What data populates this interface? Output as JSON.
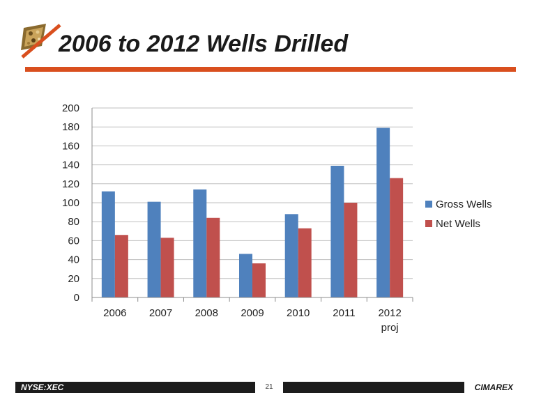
{
  "slide": {
    "title": "2006 to 2012 Wells Drilled",
    "footer": {
      "ticker": "NYSE:XEC",
      "page": "21",
      "logo_text": "CIMAREX"
    }
  },
  "colors": {
    "accent": "#d94f1e",
    "gross": "#4f81bd",
    "net": "#c0504d",
    "grid": "#bfbfbf"
  },
  "chart_data": {
    "type": "bar",
    "categories": [
      [
        "2006"
      ],
      [
        "2007"
      ],
      [
        "2008"
      ],
      [
        "2009"
      ],
      [
        "2010"
      ],
      [
        "2011"
      ],
      [
        "2012",
        "proj"
      ]
    ],
    "series": [
      {
        "name": "Gross Wells",
        "values": [
          112,
          101,
          114,
          46,
          88,
          139,
          179
        ]
      },
      {
        "name": "Net Wells",
        "values": [
          66,
          63,
          84,
          36,
          73,
          100,
          126
        ]
      }
    ],
    "ylim": [
      0,
      200
    ],
    "yticks": [
      0,
      20,
      40,
      60,
      80,
      100,
      120,
      140,
      160,
      180,
      200
    ],
    "grid": true,
    "legend": "right"
  }
}
